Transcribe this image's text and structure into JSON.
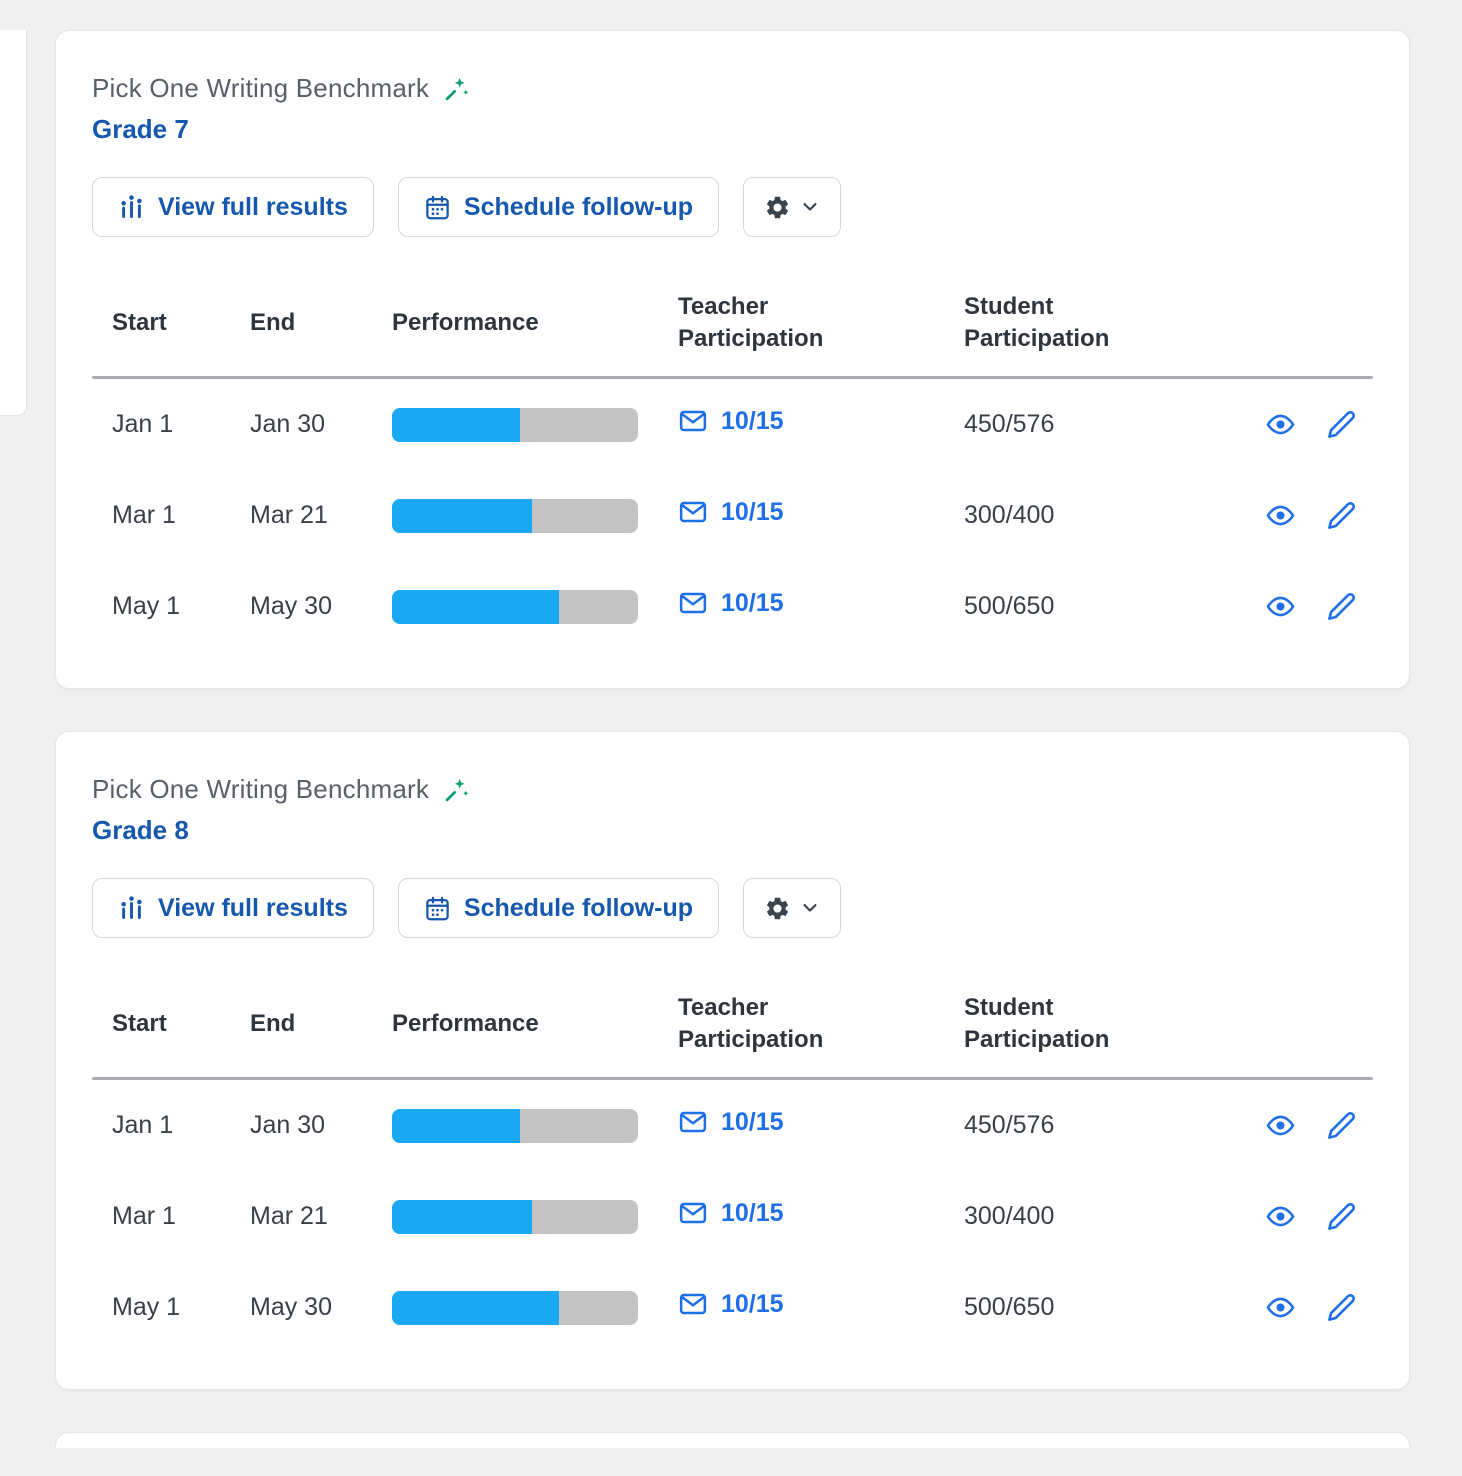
{
  "page": {
    "background": "#f0f0f1"
  },
  "colors": {
    "primary_blue": "#1658ad",
    "link_blue": "#1e6fe8",
    "progress_blue": "#18a9f2",
    "progress_track": "#c3c3c3",
    "wand_green": "#0f9d75",
    "gear_gray": "#3a444e"
  },
  "columns": {
    "start": "Start",
    "end": "End",
    "performance": "Performance",
    "teacher": "Teacher Participation",
    "student": "Student Participation"
  },
  "cards": [
    {
      "title": "Pick One Writing Benchmark",
      "grade": "Grade 7",
      "buttons": {
        "view_full_results": "View full results",
        "schedule_follow_up": "Schedule follow-up"
      },
      "table": {
        "rows": [
          {
            "start": "Jan 1",
            "end": "Jan 30",
            "performance_pct": 52,
            "teacher": "10/15",
            "student": "450/576"
          },
          {
            "start": "Mar 1",
            "end": "Mar 21",
            "performance_pct": 57,
            "teacher": "10/15",
            "student": "300/400"
          },
          {
            "start": "May 1",
            "end": "May 30",
            "performance_pct": 68,
            "teacher": "10/15",
            "student": "500/650"
          }
        ]
      }
    },
    {
      "title": "Pick One Writing Benchmark",
      "grade": "Grade 8",
      "buttons": {
        "view_full_results": "View full results",
        "schedule_follow_up": "Schedule follow-up"
      },
      "table": {
        "rows": [
          {
            "start": "Jan 1",
            "end": "Jan 30",
            "performance_pct": 52,
            "teacher": "10/15",
            "student": "450/576"
          },
          {
            "start": "Mar 1",
            "end": "Mar 21",
            "performance_pct": 57,
            "teacher": "10/15",
            "student": "300/400"
          },
          {
            "start": "May 1",
            "end": "May 30",
            "performance_pct": 68,
            "teacher": "10/15",
            "student": "500/650"
          }
        ]
      }
    }
  ]
}
